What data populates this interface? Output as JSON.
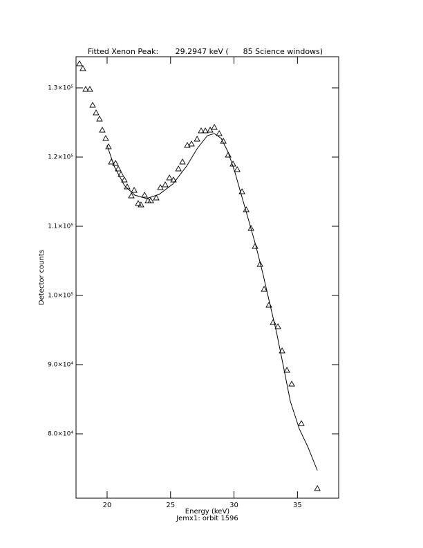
{
  "chart_data": {
    "type": "scatter",
    "title": "Fitted Xenon Peak:       29.2947 keV (      85 Science windows)",
    "x_label": "Energy (keV)",
    "subtitle": "Jemx1: orbit 1596",
    "y_label": "Detector counts",
    "color": "#000000",
    "xlim": [
      17.55,
      38.25
    ],
    "ylim": [
      70700,
      134500
    ],
    "xticks": [
      20,
      25,
      30,
      35
    ],
    "yticks": [
      {
        "value": 80000,
        "label": "8.0×10⁴"
      },
      {
        "value": 90000,
        "label": "9.0×10⁴"
      },
      {
        "value": 100000,
        "label": "1.0×10⁵"
      },
      {
        "value": 110000,
        "label": "1.1×10⁵"
      },
      {
        "value": 120000,
        "label": "1.2×10⁵"
      },
      {
        "value": 130000,
        "label": "1.3×10⁵"
      }
    ],
    "points": {
      "x": [
        17.82,
        18.09,
        18.31,
        18.64,
        18.86,
        19.13,
        19.4,
        19.62,
        19.89,
        20.11,
        20.33,
        20.66,
        20.87,
        21.09,
        21.36,
        21.58,
        21.91,
        22.13,
        22.45,
        22.67,
        22.95,
        23.22,
        23.44,
        23.87,
        24.2,
        24.58,
        24.91,
        25.23,
        25.62,
        25.94,
        26.32,
        26.65,
        27.09,
        27.41,
        27.74,
        28.12,
        28.45,
        28.83,
        29.16,
        29.54,
        29.92,
        30.25,
        30.63,
        30.96,
        31.34,
        31.66,
        32.05,
        32.37,
        32.75,
        33.08,
        33.46,
        33.79,
        34.17,
        34.55,
        35.31,
        36.57
      ],
      "values": [
        133500,
        132800,
        129800,
        129800,
        127500,
        126400,
        125500,
        123900,
        122700,
        121500,
        119300,
        119100,
        118300,
        117500,
        116700,
        115700,
        114400,
        115200,
        113300,
        113100,
        114500,
        113700,
        113700,
        114100,
        115600,
        116000,
        117000,
        116700,
        118300,
        119300,
        121700,
        121900,
        122600,
        123800,
        123800,
        123900,
        124300,
        123400,
        122300,
        120300,
        119000,
        118200,
        115000,
        112400,
        109700,
        107100,
        104500,
        100900,
        98600,
        96100,
        95500,
        92000,
        89200,
        87200,
        81500,
        72100
      ]
    },
    "fit": {
      "x": [
        20.0,
        20.55,
        21.36,
        22.18,
        23.11,
        24.09,
        25.18,
        26.27,
        27.09,
        27.9,
        28.45,
        28.99,
        29.54,
        30.09,
        30.63,
        31.18,
        31.72,
        32.27,
        32.81,
        33.35,
        33.9,
        34.44,
        35.15,
        35.8,
        36.57
      ],
      "values": [
        121700,
        118700,
        115900,
        114500,
        114000,
        114600,
        116100,
        118700,
        121200,
        123100,
        123400,
        122700,
        120700,
        117700,
        114200,
        110700,
        107200,
        103200,
        98900,
        94700,
        89700,
        84700,
        80700,
        78200,
        74700
      ]
    }
  }
}
